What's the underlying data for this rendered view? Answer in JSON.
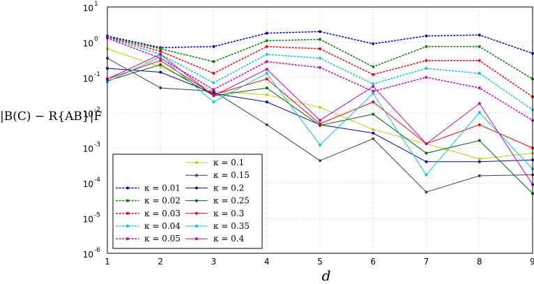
{
  "chart_data": {
    "type": "line",
    "xlabel": "d",
    "ylabel": "|B(C) − R{AB}|F",
    "xlim": [
      1,
      9
    ],
    "ylim": [
      1e-06,
      10
    ],
    "yscale": "log",
    "x_ticks": [
      "1",
      "2",
      "3",
      "4",
      "5",
      "6",
      "7",
      "8",
      "9"
    ],
    "y_ticks": [
      {
        "base": "10",
        "exp": "1"
      },
      {
        "base": "10",
        "exp": "0"
      },
      {
        "base": "10",
        "exp": "-1"
      },
      {
        "base": "10",
        "exp": "-2"
      },
      {
        "base": "10",
        "exp": "-3"
      },
      {
        "base": "10",
        "exp": "-4"
      },
      {
        "base": "10",
        "exp": "-5"
      },
      {
        "base": "10",
        "exp": "-6"
      }
    ],
    "grid": true,
    "legend_position": "bottom-left",
    "x": [
      1,
      2,
      3,
      4,
      5,
      6,
      7,
      8,
      9
    ],
    "series": [
      {
        "name": "κ = 0.01",
        "color": "#0000ff",
        "style": "dotted",
        "values": [
          1.5,
          0.7,
          0.75,
          1.8,
          2.0,
          0.9,
          1.5,
          1.6,
          0.48
        ]
      },
      {
        "name": "κ = 0.02",
        "color": "#008000",
        "style": "dotted",
        "values": [
          1.45,
          0.65,
          0.28,
          1.1,
          1.2,
          0.2,
          0.75,
          0.75,
          0.09
        ]
      },
      {
        "name": "κ = 0.03",
        "color": "#ff0000",
        "style": "dotted",
        "values": [
          1.4,
          0.55,
          0.13,
          0.75,
          0.65,
          0.12,
          0.3,
          0.3,
          0.028
        ]
      },
      {
        "name": "κ = 0.04",
        "color": "#00cccc",
        "style": "dotted",
        "values": [
          1.35,
          0.45,
          0.07,
          0.45,
          0.35,
          0.065,
          0.18,
          0.13,
          0.012
        ]
      },
      {
        "name": "κ = 0.05",
        "color": "#cc00cc",
        "style": "dotted",
        "values": [
          1.3,
          0.35,
          0.045,
          0.28,
          0.19,
          0.04,
          0.1,
          0.05,
          0.006
        ]
      },
      {
        "name": "κ = 0.1",
        "color": "#c8c800",
        "style": "solid",
        "values": [
          0.65,
          0.2,
          0.04,
          0.032,
          0.014,
          0.0033,
          0.0013,
          0.00048,
          0.0007
        ]
      },
      {
        "name": "κ = 0.15",
        "color": "#404040",
        "style": "solid",
        "values": [
          0.35,
          0.05,
          0.04,
          0.0045,
          0.00043,
          0.0018,
          5.5e-05,
          0.00016,
          0.00017
        ]
      },
      {
        "name": "κ = 0.2",
        "color": "#0000cc",
        "style": "solid",
        "values": [
          0.18,
          0.14,
          0.035,
          0.02,
          0.0045,
          0.0026,
          0.0004,
          0.0004,
          0.00045
        ]
      },
      {
        "name": "κ = 0.25",
        "color": "#006400",
        "style": "solid",
        "values": [
          0.08,
          0.23,
          0.03,
          0.05,
          0.0043,
          0.009,
          0.0007,
          0.0016,
          5e-05
        ]
      },
      {
        "name": "κ = 0.3",
        "color": "#ff0000",
        "style": "solid",
        "values": [
          0.09,
          0.3,
          0.032,
          0.09,
          0.0048,
          0.02,
          0.0013,
          0.0045,
          0.00098
        ]
      },
      {
        "name": "κ = 0.35",
        "color": "#00c8c8",
        "style": "solid",
        "values": [
          0.075,
          0.38,
          0.02,
          0.13,
          0.0012,
          0.035,
          0.00017,
          0.01,
          0.00025
        ]
      },
      {
        "name": "κ = 0.4",
        "color": "#c000c0",
        "style": "solid",
        "values": [
          0.09,
          0.45,
          0.03,
          0.17,
          0.006,
          0.055,
          0.0013,
          0.018,
          9e-05
        ]
      }
    ]
  }
}
